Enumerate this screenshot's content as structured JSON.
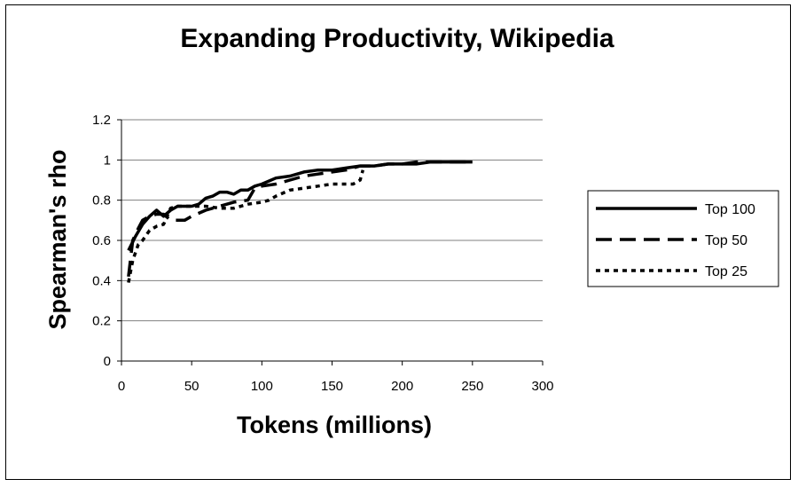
{
  "chart_data": {
    "type": "line",
    "title": "Expanding Productivity, Wikipedia",
    "xlabel": "Tokens (millions)",
    "ylabel": "Spearman's rho",
    "xlim": [
      0,
      300
    ],
    "ylim": [
      0,
      1.2
    ],
    "xticks": [
      0,
      50,
      100,
      150,
      200,
      250,
      300
    ],
    "yticks": [
      0,
      0.2,
      0.4,
      0.6,
      0.8,
      1,
      1.2
    ],
    "xtick_labels": [
      "0",
      "50",
      "100",
      "150",
      "200",
      "250",
      "300"
    ],
    "ytick_labels": [
      "0",
      "0.2",
      "0.4",
      "0.6",
      "0.8",
      "1",
      "1.2"
    ],
    "grid": "horizontal",
    "legend_position": "right",
    "series": [
      {
        "name": "Top 100",
        "style": "solid",
        "x": [
          5,
          10,
          15,
          20,
          25,
          30,
          35,
          40,
          45,
          50,
          55,
          60,
          65,
          70,
          75,
          80,
          85,
          90,
          95,
          100,
          110,
          120,
          130,
          140,
          150,
          160,
          170,
          180,
          190,
          200,
          210,
          220,
          230,
          240,
          250
        ],
        "values": [
          0.55,
          0.62,
          0.68,
          0.72,
          0.75,
          0.72,
          0.75,
          0.77,
          0.77,
          0.77,
          0.78,
          0.81,
          0.82,
          0.84,
          0.84,
          0.83,
          0.85,
          0.85,
          0.87,
          0.88,
          0.91,
          0.92,
          0.94,
          0.95,
          0.95,
          0.96,
          0.97,
          0.97,
          0.98,
          0.98,
          0.98,
          0.99,
          0.99,
          0.99,
          0.99
        ]
      },
      {
        "name": "Top 50",
        "style": "dashed",
        "x": [
          5,
          8,
          12,
          15,
          20,
          25,
          30,
          35,
          40,
          45,
          50,
          60,
          70,
          80,
          90,
          95,
          100,
          110,
          120,
          130,
          140,
          150,
          160,
          170,
          180,
          190,
          200,
          210,
          220,
          230,
          240,
          250
        ],
        "values": [
          0.42,
          0.6,
          0.66,
          0.7,
          0.72,
          0.73,
          0.73,
          0.7,
          0.7,
          0.7,
          0.72,
          0.75,
          0.77,
          0.79,
          0.8,
          0.86,
          0.87,
          0.88,
          0.9,
          0.92,
          0.93,
          0.94,
          0.95,
          0.97,
          0.97,
          0.98,
          0.98,
          0.99,
          0.99,
          0.99,
          0.99,
          0.99
        ]
      },
      {
        "name": "Top 25",
        "style": "dotted",
        "x": [
          5,
          8,
          12,
          15,
          20,
          25,
          30,
          35,
          40,
          50,
          60,
          70,
          80,
          90,
          100,
          105,
          110,
          120,
          130,
          140,
          150,
          160,
          165,
          170,
          172
        ],
        "values": [
          0.39,
          0.5,
          0.58,
          0.6,
          0.65,
          0.67,
          0.68,
          0.76,
          0.77,
          0.77,
          0.77,
          0.76,
          0.76,
          0.78,
          0.79,
          0.8,
          0.82,
          0.85,
          0.86,
          0.87,
          0.88,
          0.88,
          0.88,
          0.9,
          0.95
        ]
      }
    ]
  }
}
